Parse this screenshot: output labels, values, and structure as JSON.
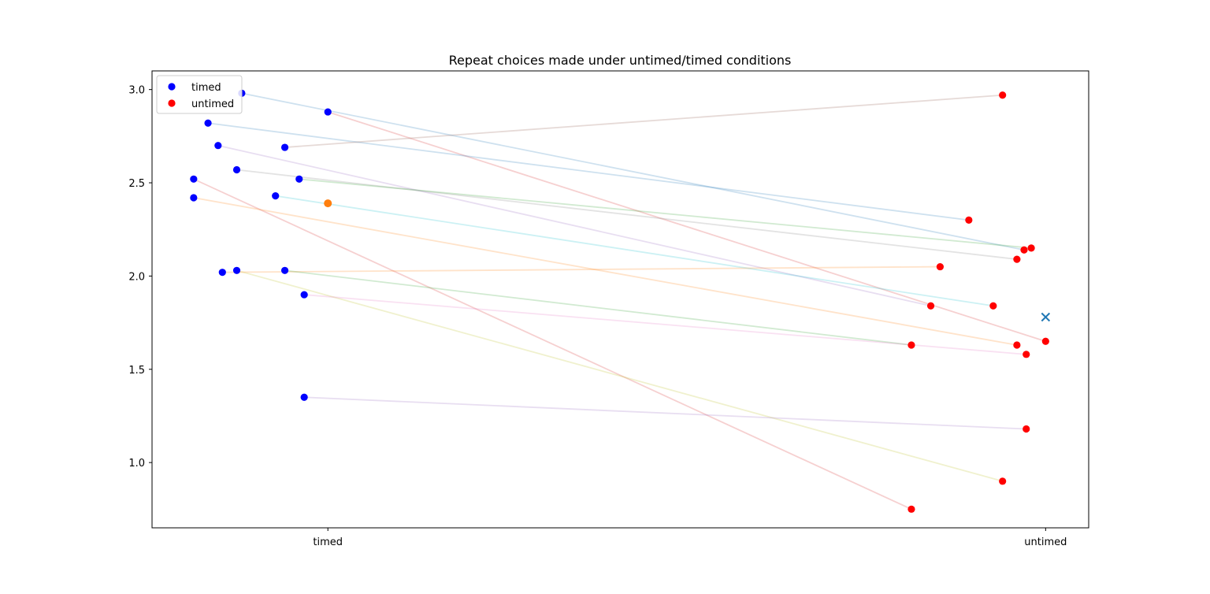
{
  "chart_data": {
    "type": "scatter",
    "title": "Repeat choices made under untimed/timed conditions",
    "xlabel": "",
    "ylabel": "",
    "x_categories": [
      "timed",
      "untimed"
    ],
    "xlim": [
      -0.245,
      1.06
    ],
    "ylim": [
      0.65,
      3.1
    ],
    "yticks": [
      1.0,
      1.5,
      2.0,
      2.5,
      3.0
    ],
    "ytick_labels": [
      "1.0",
      "1.5",
      "2.0",
      "2.5",
      "3.0"
    ],
    "grid": false,
    "legend": {
      "placement": "upper-left",
      "entries": [
        {
          "label": "timed",
          "color": "#0000ff",
          "marker": "circle"
        },
        {
          "label": "untimed",
          "color": "#ff0000",
          "marker": "circle"
        }
      ]
    },
    "colors": {
      "timed": "#0000ff",
      "untimed": "#ff0000",
      "timed_mean": "#ff7f0e",
      "untimed_mean": "#1f77b4"
    },
    "pairs": [
      {
        "timed_x": -0.12,
        "timed_y": 2.98,
        "untimed_x": 0.97,
        "untimed_y": 2.14,
        "color": "#1f77b4"
      },
      {
        "timed_x": 0.0,
        "timed_y": 2.88,
        "untimed_x": 1.0,
        "untimed_y": 1.65,
        "color": "#d62728"
      },
      {
        "timed_x": -0.167,
        "timed_y": 2.82,
        "untimed_x": 0.893,
        "untimed_y": 2.3,
        "color": "#1f77b4"
      },
      {
        "timed_x": -0.153,
        "timed_y": 2.7,
        "untimed_x": 0.84,
        "untimed_y": 1.84,
        "color": "#9467bd"
      },
      {
        "timed_x": -0.06,
        "timed_y": 2.69,
        "untimed_x": 0.94,
        "untimed_y": 2.97,
        "color": "#8c564b"
      },
      {
        "timed_x": -0.127,
        "timed_y": 2.57,
        "untimed_x": 0.96,
        "untimed_y": 2.09,
        "color": "#7f7f7f"
      },
      {
        "timed_x": -0.187,
        "timed_y": 2.52,
        "untimed_x": 0.813,
        "untimed_y": 0.75,
        "color": "#d62728"
      },
      {
        "timed_x": -0.04,
        "timed_y": 2.52,
        "untimed_x": 0.98,
        "untimed_y": 2.15,
        "color": "#2ca02c"
      },
      {
        "timed_x": -0.073,
        "timed_y": 2.43,
        "untimed_x": 0.927,
        "untimed_y": 1.84,
        "color": "#17becf"
      },
      {
        "timed_x": -0.187,
        "timed_y": 2.42,
        "untimed_x": 0.96,
        "untimed_y": 1.63,
        "color": "#ff7f0e"
      },
      {
        "timed_x": -0.127,
        "timed_y": 2.03,
        "untimed_x": 0.94,
        "untimed_y": 0.9,
        "color": "#bcbd22"
      },
      {
        "timed_x": -0.147,
        "timed_y": 2.02,
        "untimed_x": 0.853,
        "untimed_y": 2.05,
        "color": "#ff7f0e"
      },
      {
        "timed_x": -0.06,
        "timed_y": 2.03,
        "untimed_x": 0.813,
        "untimed_y": 1.63,
        "color": "#2ca02c"
      },
      {
        "timed_x": -0.033,
        "timed_y": 1.9,
        "untimed_x": 0.973,
        "untimed_y": 1.58,
        "color": "#e377c2"
      },
      {
        "timed_x": -0.033,
        "timed_y": 1.35,
        "untimed_x": 0.973,
        "untimed_y": 1.18,
        "color": "#9467bd"
      }
    ],
    "timed_mean": {
      "x": 0.0,
      "y": 2.39
    },
    "untimed_mean": {
      "x": 1.0,
      "y": 1.78
    }
  }
}
